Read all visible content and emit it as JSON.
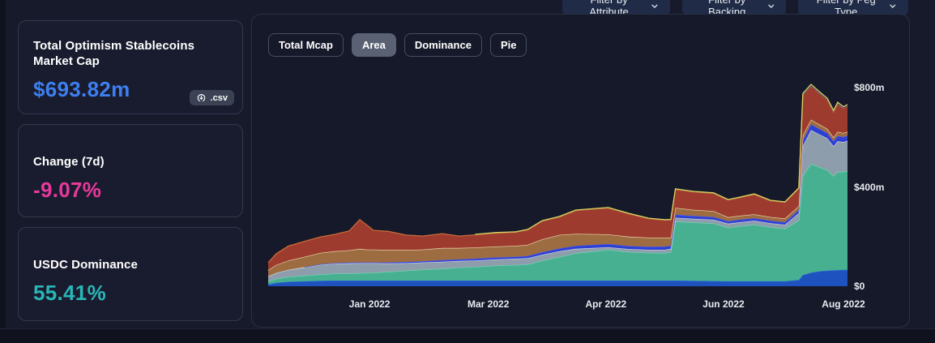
{
  "filters": [
    {
      "label": "Filter by Attribute"
    },
    {
      "label": "Filter by Backing"
    },
    {
      "label": "Filter by Peg Type"
    }
  ],
  "stats": {
    "mcap": {
      "title": "Total Optimism Stablecoins Market Cap",
      "value": "$693.82m",
      "value_color": "#3d7ff0",
      "csv_label": ".csv"
    },
    "change": {
      "title": "Change (7d)",
      "value": "-9.07%",
      "value_color": "#e6399b"
    },
    "dominance": {
      "title": "USDC Dominance",
      "value": "55.41%",
      "value_color": "#2ab6b6"
    }
  },
  "chart_tabs": [
    {
      "label": "Total Mcap",
      "selected": false
    },
    {
      "label": "Area",
      "selected": true
    },
    {
      "label": "Dominance",
      "selected": false
    },
    {
      "label": "Pie",
      "selected": false
    }
  ],
  "chart_data": {
    "type": "area",
    "stacked": true,
    "unit": "$m",
    "ylim": [
      0,
      800
    ],
    "yticks": [
      {
        "label": "$0",
        "value": 0
      },
      {
        "label": "$400m",
        "value": 400
      },
      {
        "label": "$800m",
        "value": 800
      }
    ],
    "xticks": [
      {
        "label": "Jan 2022",
        "pos": 17.5
      },
      {
        "label": "Mar 2022",
        "pos": 38.0
      },
      {
        "label": "Apr 2022",
        "pos": 58.3
      },
      {
        "label": "Jun 2022",
        "pos": 78.6
      },
      {
        "label": "Aug 2022",
        "pos": 99.3
      }
    ],
    "x_percent": [
      0,
      1.4,
      3.5,
      6.3,
      9.1,
      11.5,
      14,
      15.8,
      17.1,
      18.2,
      20.7,
      23.8,
      26.6,
      30.1,
      32.9,
      35.7,
      39.2,
      42.7,
      44.8,
      47.3,
      50.3,
      53.1,
      58.7,
      62.2,
      65.7,
      68.5,
      69.5,
      70.3,
      73.4,
      76.9,
      79.4,
      81.4,
      83.9,
      86.7,
      89.2,
      91.6,
      92.3,
      93.7,
      95.1,
      96.5,
      97.6,
      98.3,
      99.3,
      100
    ],
    "series": [
      {
        "name": "series-blue",
        "color": "#1e52be",
        "stroke": "#2f66d6",
        "values": [
          8,
          14,
          18,
          20,
          22,
          23,
          23,
          23,
          23,
          23,
          23,
          23,
          23,
          23,
          23,
          23,
          23,
          23,
          23,
          23,
          23,
          23,
          23,
          23,
          23,
          23,
          23,
          23,
          22,
          21,
          20,
          20,
          20,
          20,
          20,
          25,
          45,
          55,
          60,
          63,
          64,
          65,
          66,
          66
        ]
      },
      {
        "name": "series-teal",
        "color": "#46b091",
        "stroke": "#6fd6b2",
        "values": [
          12,
          16,
          20,
          23,
          26,
          28,
          29,
          30,
          31,
          32,
          35,
          40,
          44,
          48,
          52,
          55,
          60,
          63,
          65,
          80,
          95,
          110,
          124,
          115,
          112,
          111,
          115,
          238,
          235,
          232,
          216,
          222,
          228,
          218,
          212,
          240,
          400,
          438,
          420,
          405,
          380,
          395,
          395,
          398
        ]
      },
      {
        "name": "series-gray",
        "color": "#8e9dab",
        "stroke": "#cdd6de",
        "values": [
          20,
          24,
          28,
          33,
          39,
          40,
          40,
          40,
          39,
          38,
          34,
          30,
          29,
          28,
          27,
          26,
          25,
          25,
          25,
          24,
          23,
          18,
          10,
          12,
          12,
          13,
          13,
          15,
          15,
          15,
          16,
          16,
          16,
          16,
          16,
          30,
          120,
          136,
          132,
          128,
          120,
          124,
          120,
          122
        ]
      },
      {
        "name": "series-indigo",
        "color": "#2e3fd4",
        "stroke": "#4b5bf2",
        "values": [
          null,
          null,
          null,
          1,
          2,
          2,
          3,
          3,
          3,
          3,
          4,
          5,
          5,
          6,
          6,
          7,
          8,
          8,
          9,
          10,
          11,
          12,
          13,
          12,
          12,
          13,
          12,
          12,
          11,
          11,
          10,
          10,
          10,
          10,
          10,
          12,
          22,
          23,
          22,
          21,
          20,
          21,
          20,
          20
        ]
      },
      {
        "name": "series-brown",
        "color": "#9d6c41",
        "stroke": "#ecd9ae",
        "values": [
          25,
          32,
          38,
          42,
          46,
          48,
          50,
          55,
          52,
          52,
          50,
          48,
          47,
          49,
          46,
          45,
          44,
          44,
          45,
          52,
          55,
          48,
          39,
          38,
          37,
          36,
          32,
          28,
          25,
          24,
          16,
          16,
          16,
          15,
          15,
          16,
          22,
          19,
          18,
          17,
          16,
          17,
          16,
          16
        ]
      },
      {
        "name": "series-red",
        "color": "#9d3b2f",
        "stroke": "#c96a39",
        "values": [
          30,
          45,
          58,
          62,
          64,
          68,
          78,
          117,
          97,
          77,
          75,
          60,
          54,
          58,
          48,
          51,
          54,
          54,
          60,
          73,
          72,
          94,
          106,
          92,
          76,
          70,
          72,
          74,
          72,
          71,
          69,
          73,
          80,
          65,
          65,
          70,
          160,
          135,
          125,
          116,
          101,
          112,
          100,
          103
        ]
      },
      {
        "name": "series-olive",
        "color": "#2a357e",
        "stroke": "#d7d55e",
        "values": [
          null,
          null,
          null,
          null,
          null,
          null,
          null,
          null,
          null,
          null,
          null,
          null,
          null,
          null,
          null,
          2,
          2,
          2,
          2,
          2,
          2,
          2,
          2,
          2,
          2,
          2,
          2,
          2,
          2,
          2,
          2,
          2,
          2,
          2,
          2,
          3,
          7,
          7,
          7,
          7,
          7,
          7,
          6,
          6
        ]
      }
    ]
  }
}
